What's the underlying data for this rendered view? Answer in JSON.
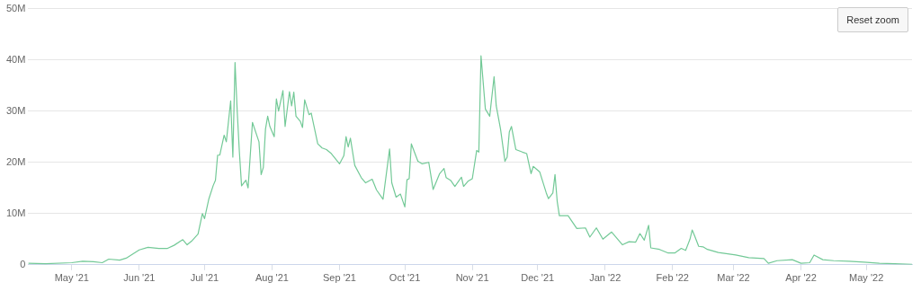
{
  "chart_data": {
    "type": "line",
    "annotations": [
      "Reset zoom"
    ],
    "xlim": [
      "2021-04-11",
      "2022-05-22"
    ],
    "xticks": [
      {
        "value": "2021-05-01",
        "label": "May '21"
      },
      {
        "value": "2021-06-01",
        "label": "Jun '21"
      },
      {
        "value": "2021-07-01",
        "label": "Jul '21"
      },
      {
        "value": "2021-08-01",
        "label": "Aug '21"
      },
      {
        "value": "2021-09-01",
        "label": "Sep '21"
      },
      {
        "value": "2021-10-01",
        "label": "Oct '21"
      },
      {
        "value": "2021-11-01",
        "label": "Nov '21"
      },
      {
        "value": "2021-12-01",
        "label": "Dec '21"
      },
      {
        "value": "2022-01-01",
        "label": "Jan '22"
      },
      {
        "value": "2022-02-01",
        "label": "Feb '22"
      },
      {
        "value": "2022-03-01",
        "label": "Mar '22"
      },
      {
        "value": "2022-04-01",
        "label": "Apr '22"
      },
      {
        "value": "2022-05-01",
        "label": "May '22"
      }
    ],
    "ylim": [
      0,
      50
    ],
    "yticks": [
      0,
      {
        "value": 10,
        "label": "10M"
      },
      {
        "value": 20,
        "label": "20M"
      },
      {
        "value": 30,
        "label": "30M"
      },
      {
        "value": 40,
        "label": "40M"
      },
      {
        "value": 50,
        "label": "50M"
      }
    ],
    "grid": "y",
    "legend": false,
    "marker": "none",
    "line_style": "solid",
    "x": [
      "2021-04-11",
      "2021-04-19",
      "2021-05-01",
      "2021-05-06",
      "2021-05-11",
      "2021-05-15",
      "2021-05-18",
      "2021-05-23",
      "2021-05-26",
      "2021-06-01",
      "2021-06-05",
      "2021-06-10",
      "2021-06-14",
      "2021-06-17",
      "2021-06-21",
      "2021-06-23",
      "2021-06-25",
      "2021-06-28",
      "2021-06-30",
      "2021-07-01",
      "2021-07-03",
      "2021-07-05",
      "2021-07-06",
      "2021-07-07",
      "2021-07-08",
      "2021-07-10",
      "2021-07-11",
      "2021-07-13",
      "2021-07-14",
      "2021-07-15",
      "2021-07-16",
      "2021-07-17",
      "2021-07-18",
      "2021-07-20",
      "2021-07-21",
      "2021-07-23",
      "2021-07-26",
      "2021-07-27",
      "2021-07-28",
      "2021-07-29",
      "2021-07-30",
      "2021-07-31",
      "2021-08-02",
      "2021-08-03",
      "2021-08-04",
      "2021-08-06",
      "2021-08-07",
      "2021-08-09",
      "2021-08-10",
      "2021-08-11",
      "2021-08-12",
      "2021-08-14",
      "2021-08-15",
      "2021-08-16",
      "2021-08-18",
      "2021-08-19",
      "2021-08-22",
      "2021-08-24",
      "2021-08-26",
      "2021-08-28",
      "2021-09-01",
      "2021-09-03",
      "2021-09-04",
      "2021-09-05",
      "2021-09-06",
      "2021-09-08",
      "2021-09-11",
      "2021-09-13",
      "2021-09-16",
      "2021-09-18",
      "2021-09-21",
      "2021-09-24",
      "2021-09-25",
      "2021-09-27",
      "2021-09-29",
      "2021-10-01",
      "2021-10-02",
      "2021-10-03",
      "2021-10-04",
      "2021-10-07",
      "2021-10-09",
      "2021-10-12",
      "2021-10-14",
      "2021-10-17",
      "2021-10-19",
      "2021-10-20",
      "2021-10-22",
      "2021-10-24",
      "2021-10-27",
      "2021-10-28",
      "2021-10-30",
      "2021-11-01",
      "2021-11-03",
      "2021-11-04",
      "2021-11-05",
      "2021-11-07",
      "2021-11-09",
      "2021-11-11",
      "2021-11-12",
      "2021-11-14",
      "2021-11-16",
      "2021-11-17",
      "2021-11-18",
      "2021-11-19",
      "2021-11-21",
      "2021-11-24",
      "2021-11-26",
      "2021-11-28",
      "2021-11-29",
      "2021-12-02",
      "2021-12-05",
      "2021-12-06",
      "2021-12-08",
      "2021-12-09",
      "2021-12-10",
      "2021-12-11",
      "2021-12-15",
      "2021-12-19",
      "2021-12-23",
      "2021-12-25",
      "2021-12-28",
      "2021-12-31",
      "2022-01-04",
      "2022-01-09",
      "2022-01-12",
      "2022-01-15",
      "2022-01-17",
      "2022-01-19",
      "2022-01-21",
      "2022-01-22",
      "2022-01-26",
      "2022-01-30",
      "2022-02-02",
      "2022-02-05",
      "2022-02-07",
      "2022-02-09",
      "2022-02-10",
      "2022-02-11",
      "2022-02-13",
      "2022-02-15",
      "2022-02-17",
      "2022-02-22",
      "2022-03-02",
      "2022-03-08",
      "2022-03-15",
      "2022-03-17",
      "2022-03-21",
      "2022-03-28",
      "2022-04-01",
      "2022-04-05",
      "2022-04-07",
      "2022-04-11",
      "2022-04-16",
      "2022-04-23",
      "2022-04-30",
      "2022-05-07",
      "2022-05-14",
      "2022-05-22"
    ],
    "series": [
      {
        "color": "#73c997",
        "values": [
          0.3,
          0.2,
          0.4,
          0.7,
          0.6,
          0.4,
          1.1,
          0.9,
          1.3,
          2.9,
          3.4,
          3.2,
          3.2,
          3.8,
          4.9,
          3.9,
          4.6,
          6,
          10,
          9,
          12.9,
          15.5,
          16.5,
          21.4,
          21.4,
          25.3,
          24,
          32,
          21,
          39.5,
          30,
          22,
          15.4,
          16.5,
          15,
          27.8,
          24,
          17.6,
          19,
          26.5,
          29,
          27,
          25,
          32.4,
          30,
          34,
          27,
          33.8,
          31,
          33.7,
          29,
          28,
          26.8,
          32.2,
          29.3,
          29.6,
          23.6,
          22.8,
          22.5,
          21.8,
          19.7,
          21.3,
          25,
          23,
          24.7,
          19.4,
          17,
          16,
          16.7,
          14.6,
          12.8,
          22.6,
          16,
          13.2,
          13.8,
          11.3,
          16.6,
          16.8,
          23.6,
          20.2,
          19.7,
          20,
          14.7,
          17.8,
          18.8,
          17,
          16.5,
          15.3,
          17.1,
          15.3,
          16.3,
          16.8,
          22.3,
          22,
          40.8,
          30.4,
          29,
          36.7,
          31,
          26.4,
          20.2,
          21,
          25.9,
          27,
          22.5,
          22,
          21.7,
          17.8,
          19.2,
          18.1,
          14,
          12.9,
          14,
          17.6,
          12.4,
          9.6,
          9.6,
          7.1,
          7.2,
          5.4,
          7.2,
          5,
          6.4,
          3.9,
          4.5,
          4.4,
          6.1,
          4.8,
          7.7,
          3.3,
          3,
          2.3,
          2.3,
          3.2,
          2.8,
          5,
          6.8,
          5.8,
          3.6,
          3.5,
          3,
          2.4,
          1.9,
          1.4,
          1.2,
          0.3,
          0.8,
          1,
          0.3,
          0.4,
          1.9,
          1,
          0.8,
          0.7,
          0.5,
          0.3,
          0.2,
          0.1
        ]
      }
    ]
  }
}
